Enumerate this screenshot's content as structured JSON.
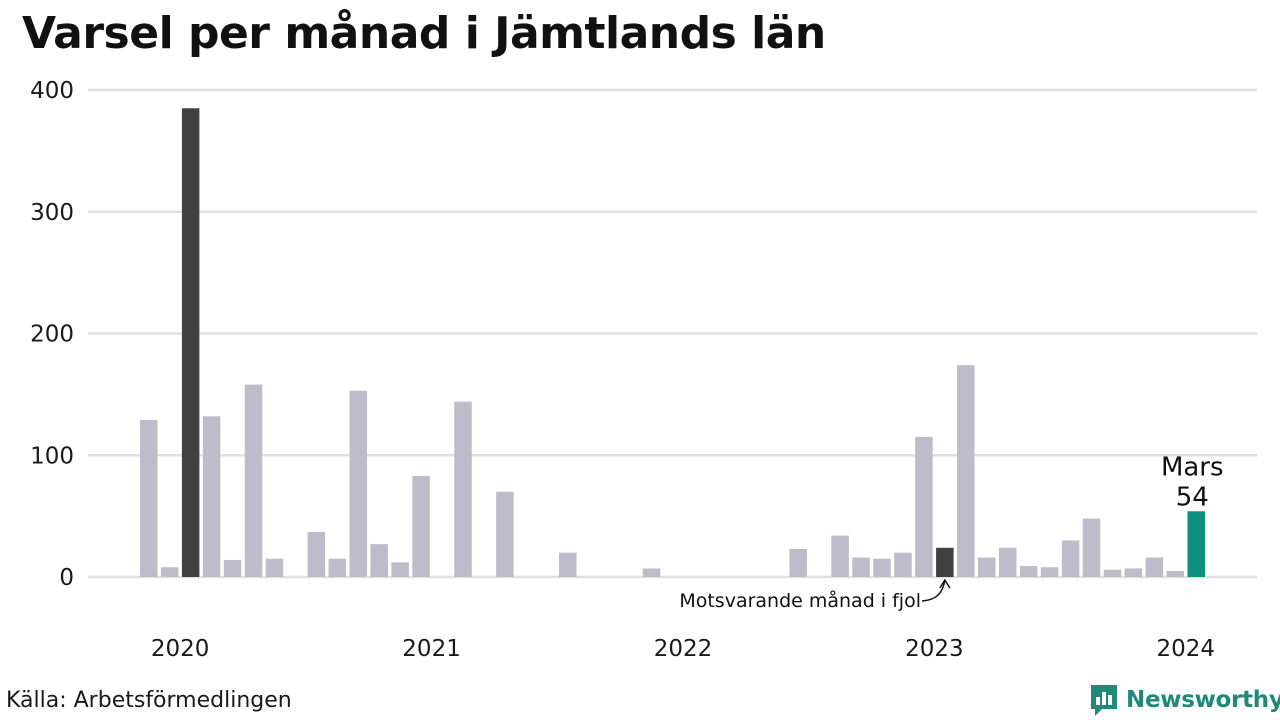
{
  "title": "Varsel per månad i Jämtlands län",
  "source": "Källa: Arbetsförmedlingen",
  "brand": {
    "name": "Newsworthy",
    "icon": "newsworthy-logo-icon"
  },
  "colors": {
    "bar": "#bebbcb",
    "highlight": "#0f8f80",
    "comparison": "#404040",
    "grid": "#e0e0e0",
    "brand": "#1f8a7a"
  },
  "chart_data": {
    "type": "bar",
    "title": "Varsel per månad i Jämtlands län",
    "xlabel": "",
    "ylabel": "",
    "ylim": [
      0,
      400
    ],
    "yticks": [
      "0",
      "100",
      "200",
      "300",
      "400"
    ],
    "grid": true,
    "x_tick_labels": [
      "2020",
      "2021",
      "2022",
      "2023",
      "2024"
    ],
    "categories": [
      "2020-01",
      "2020-02",
      "2020-03",
      "2020-04",
      "2020-05",
      "2020-06",
      "2020-07",
      "2020-08",
      "2020-09",
      "2020-10",
      "2020-11",
      "2020-12",
      "2021-01",
      "2021-02",
      "2021-03",
      "2021-04",
      "2021-05",
      "2021-06",
      "2021-07",
      "2021-08",
      "2021-09",
      "2021-10",
      "2021-11",
      "2021-12",
      "2022-01",
      "2022-02",
      "2022-03",
      "2022-04",
      "2022-05",
      "2022-06",
      "2022-07",
      "2022-08",
      "2022-09",
      "2022-10",
      "2022-11",
      "2022-12",
      "2023-01",
      "2023-02",
      "2023-03",
      "2023-04",
      "2023-05",
      "2023-06",
      "2023-07",
      "2023-08",
      "2023-09",
      "2023-10",
      "2023-11",
      "2023-12",
      "2024-01",
      "2024-02",
      "2024-03"
    ],
    "values": [
      129,
      8,
      385,
      132,
      14,
      158,
      15,
      0,
      37,
      15,
      153,
      27,
      12,
      83,
      0,
      144,
      0,
      70,
      0,
      0,
      20,
      0,
      0,
      0,
      7,
      0,
      0,
      0,
      0,
      0,
      0,
      23,
      0,
      34,
      16,
      15,
      20,
      115,
      24,
      174,
      16,
      24,
      9,
      8,
      30,
      48,
      6,
      7,
      16,
      5,
      54
    ],
    "comparison_labels": [
      "2020-03",
      "2023-03"
    ],
    "highlight": {
      "category": "2024-03",
      "label": "Mars",
      "value_label": "54"
    },
    "annotation": "Motsvarande månad i fjol"
  }
}
